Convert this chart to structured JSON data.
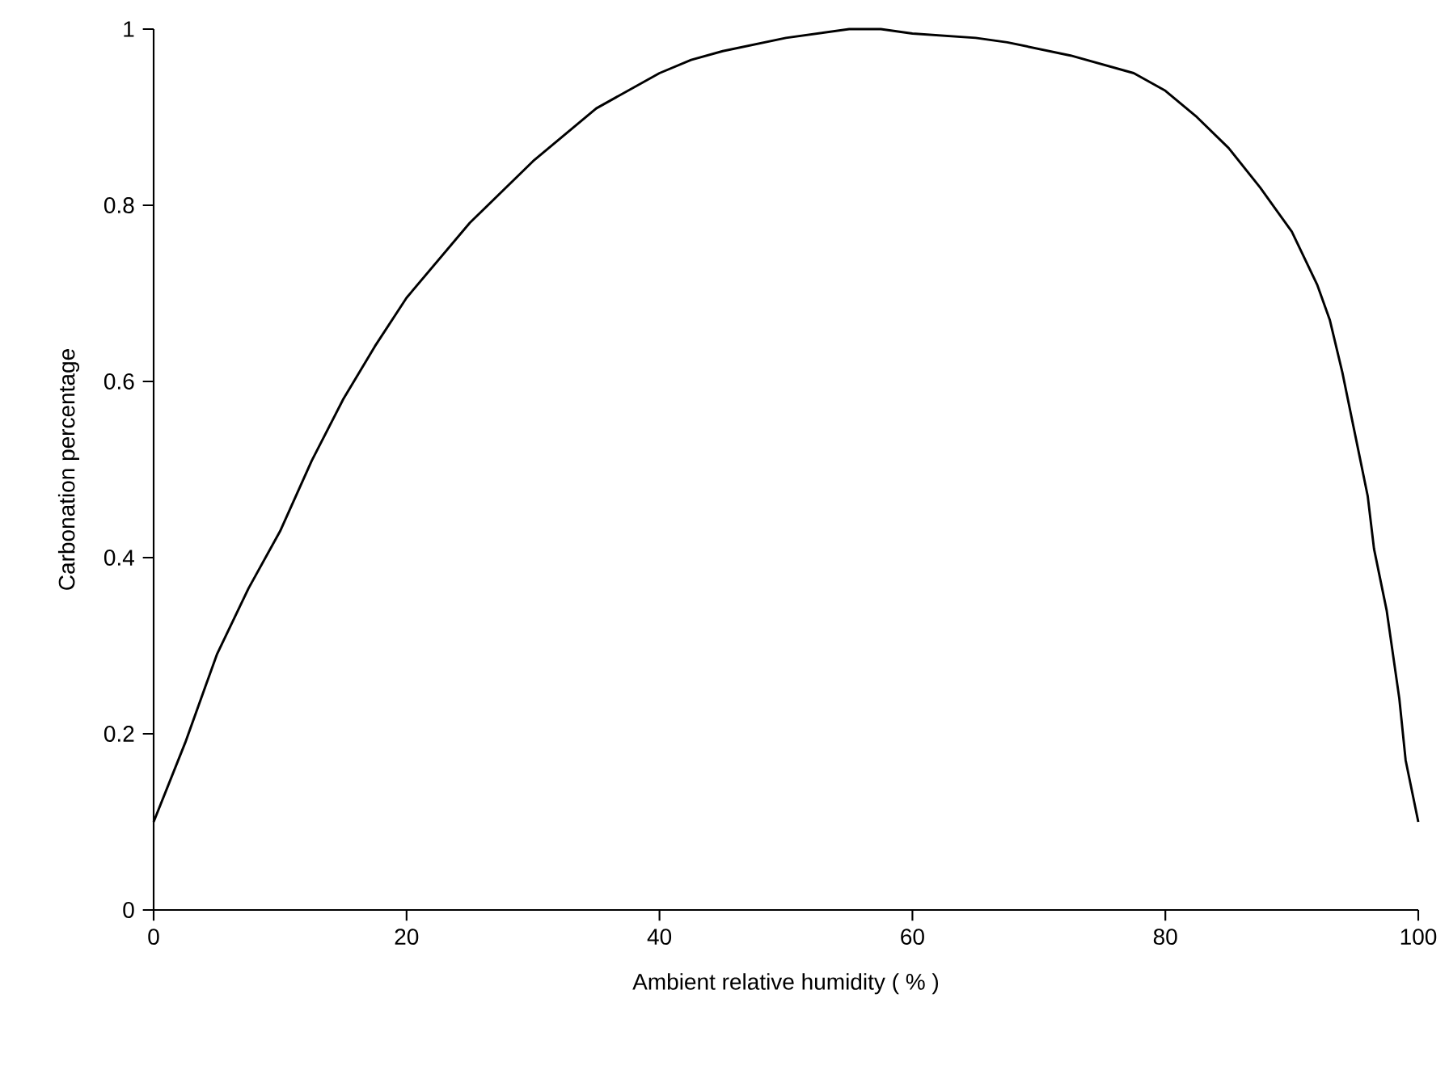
{
  "chart_data": {
    "type": "line",
    "xlabel": "Ambient relative humidity ( % )",
    "ylabel": "Carbonation percentage",
    "xlim": [
      0,
      100
    ],
    "ylim": [
      0,
      1
    ],
    "xticks": [
      0,
      20,
      40,
      60,
      80,
      100
    ],
    "yticks": [
      0,
      0.2,
      0.4,
      0.6,
      0.8,
      1
    ],
    "x": [
      0,
      2.5,
      5,
      7.5,
      10,
      12.5,
      15,
      17.5,
      20,
      25,
      30,
      35,
      40,
      42.5,
      45,
      50,
      55,
      57.5,
      60,
      65,
      67.5,
      72.5,
      77.5,
      80,
      82.5,
      85,
      87.5,
      90,
      92,
      93,
      94,
      95,
      96,
      96.5,
      97.5,
      98.5,
      99,
      100
    ],
    "series": [
      {
        "color": "#000000",
        "values": [
          0.1,
          0.19,
          0.29,
          0.365,
          0.43,
          0.51,
          0.58,
          0.64,
          0.695,
          0.78,
          0.85,
          0.91,
          0.95,
          0.965,
          0.975,
          0.99,
          1.0,
          1.0,
          0.995,
          0.99,
          0.985,
          0.97,
          0.95,
          0.93,
          0.9,
          0.865,
          0.82,
          0.77,
          0.71,
          0.67,
          0.61,
          0.54,
          0.47,
          0.41,
          0.34,
          0.24,
          0.17,
          0.1
        ]
      }
    ]
  }
}
